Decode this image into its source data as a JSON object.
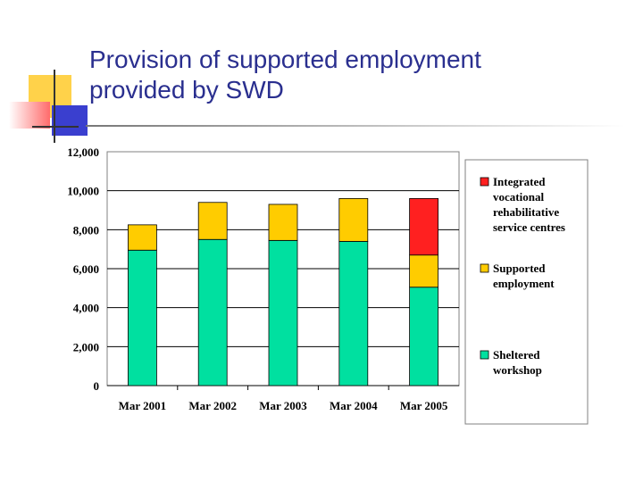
{
  "slide": {
    "title_line1": "Provision of supported employment",
    "title_line2": "provided by SWD"
  },
  "colors": {
    "title": "#2a2f8f",
    "deco_yellow": "#ffd24a",
    "deco_red": "#ff6b6b",
    "deco_blue": "#3a3fcf"
  },
  "chart_data": {
    "type": "bar",
    "stacked": true,
    "categories": [
      "Mar 2001",
      "Mar 2002",
      "Mar 2003",
      "Mar 2004",
      "Mar 2005"
    ],
    "series": [
      {
        "name": "Sheltered workshop",
        "values": [
          6950,
          7500,
          7450,
          7400,
          5050
        ],
        "color": "#00e0a0"
      },
      {
        "name": "Supported employment",
        "values": [
          1300,
          1900,
          1850,
          2200,
          1650
        ],
        "color": "#ffcc00"
      },
      {
        "name": "Integrated vocational rehabilitative service centres",
        "values": [
          0,
          0,
          0,
          0,
          2900
        ],
        "color": "#ff2020"
      }
    ],
    "legend_lines": [
      [
        "Integrated",
        "vocational",
        "rehabilitative",
        "service centres"
      ],
      [
        "Supported",
        "employment"
      ],
      [
        "Sheltered",
        "workshop"
      ]
    ],
    "yticks": [
      "0",
      "2,000",
      "4,000",
      "6,000",
      "8,000",
      "10,000",
      "12,000"
    ],
    "ylim": [
      0,
      12000
    ],
    "grid": true,
    "legend_position": "right"
  }
}
